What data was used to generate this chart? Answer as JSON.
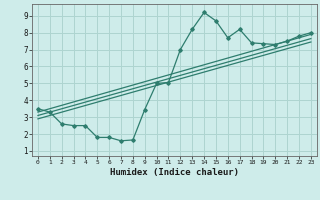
{
  "bg_color": "#ceecea",
  "grid_color": "#aed4d0",
  "line_color": "#2e7d6e",
  "xlabel": "Humidex (Indice chaleur)",
  "xlim": [
    -0.5,
    23.5
  ],
  "ylim": [
    0.7,
    9.7
  ],
  "xticks": [
    0,
    1,
    2,
    3,
    4,
    5,
    6,
    7,
    8,
    9,
    10,
    11,
    12,
    13,
    14,
    15,
    16,
    17,
    18,
    19,
    20,
    21,
    22,
    23
  ],
  "yticks": [
    1,
    2,
    3,
    4,
    5,
    6,
    7,
    8,
    9
  ],
  "curve_x": [
    0,
    1,
    2,
    3,
    4,
    5,
    6,
    7,
    8,
    9,
    10,
    11,
    12,
    13,
    14,
    15,
    16,
    17,
    18,
    19,
    20,
    21,
    22,
    23
  ],
  "curve_y": [
    3.5,
    3.3,
    2.6,
    2.5,
    2.5,
    1.8,
    1.8,
    1.6,
    1.65,
    3.45,
    5.0,
    5.05,
    7.0,
    8.2,
    9.2,
    8.7,
    7.7,
    8.2,
    7.4,
    7.35,
    7.3,
    7.5,
    7.8,
    8.0
  ],
  "line1_x": [
    0,
    23
  ],
  "line1_y": [
    3.3,
    7.9
  ],
  "line2_x": [
    0,
    23
  ],
  "line2_y": [
    3.1,
    7.65
  ],
  "line3_x": [
    0,
    23
  ],
  "line3_y": [
    2.9,
    7.45
  ]
}
